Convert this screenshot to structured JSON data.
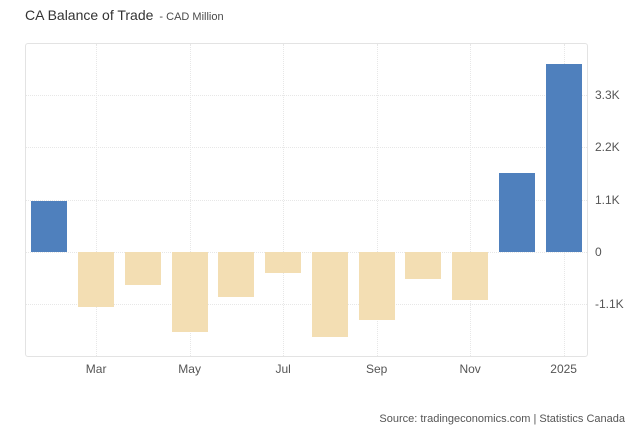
{
  "header": {
    "title": "CA Balance of Trade",
    "subtitle": "- CAD Million"
  },
  "footer": {
    "source_text": "Source: tradingeconomics.com | Statistics Canada"
  },
  "chart_data": {
    "type": "bar",
    "title": "CA Balance of Trade",
    "unit": "CAD Million",
    "categories": [
      "",
      "Mar",
      "",
      "May",
      "",
      "Jul",
      "",
      "Sep",
      "",
      "Nov",
      "",
      "2025"
    ],
    "values": [
      1070,
      -1170,
      -710,
      -1700,
      -960,
      -440,
      -1800,
      -1440,
      -570,
      -1010,
      1660,
      3960
    ],
    "ylim": [
      -2200,
      4380
    ],
    "yticks": [
      {
        "value": 3300,
        "label": "3.3K"
      },
      {
        "value": 2200,
        "label": "2.2K"
      },
      {
        "value": 1100,
        "label": "1.1K"
      },
      {
        "value": 0,
        "label": "0"
      },
      {
        "value": -1100,
        "label": "-1.1K"
      }
    ],
    "grid": true,
    "legend": "none",
    "axis_side": "right",
    "colors": {
      "positive_bar": "#4f80bd",
      "negative_bar": "#f3deb3",
      "grid_line": "#e7e7e7",
      "plot_border": "#e3e3e3",
      "tick_text": "#555555"
    },
    "bar_width_fraction": 0.77
  }
}
